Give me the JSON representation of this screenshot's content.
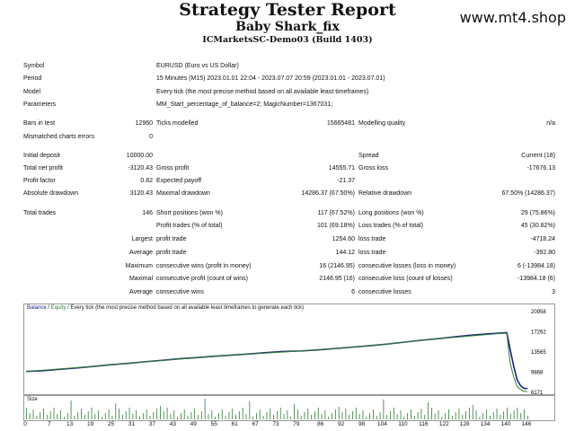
{
  "report": {
    "title": "Strategy Tester Report",
    "ea_name": "Baby Shark_fix",
    "server": "ICMarketsSC-Demo03 (Build 1403)",
    "brand": "www.mt4.shop"
  },
  "header_rows": [
    {
      "label": "Symbol",
      "value": "EURUSD (Euro vs US Dollar)"
    },
    {
      "label": "Period",
      "value": "15 Minutes (M15) 2023.01.01 22:04 - 2023.07.07 20:59 (2023.01.01 - 2023.07.01)"
    },
    {
      "label": "Model",
      "value": "Every tick (the most precise method based on all available least timeframes)"
    },
    {
      "label": "Parameters",
      "value": "MM_Start_percentage_of_balance=2; MagicNumber=1367031;"
    }
  ],
  "stats": {
    "bars_label": "Bars in test",
    "bars_value": "12960",
    "ticks_label": "Ticks modelled",
    "ticks_value": "15665481",
    "quality_label": "Modelling quality",
    "quality_value": "n/a",
    "mismatch_label": "Mismatched charts errors",
    "mismatch_value": "0",
    "deposit_label": "Initial deposit",
    "deposit_value": "10000.00",
    "spread_label": "Spread",
    "spread_value": "Current (18)",
    "netprofit_label": "Total net profit",
    "netprofit_value": "-3120.43",
    "grossprofit_label": "Gross profit",
    "grossprofit_value": "14555.71",
    "grossloss_label": "Gross loss",
    "grossloss_value": "-17676.13",
    "pf_label": "Profit factor",
    "pf_value": "0.82",
    "payoff_label": "Expected payoff",
    "payoff_value": "-21.37",
    "absdd_label": "Absolute drawdown",
    "absdd_value": "3120.43",
    "maxdd_label": "Maximal drawdown",
    "maxdd_value": "14286.37 (67.50%)",
    "reldd_label": "Relative drawdown",
    "reldd_value": "67.50% (14286.37)",
    "trades_label": "Total trades",
    "trades_value": "146",
    "short_label": "Short positions (won %)",
    "short_value": "117 (67.52%)",
    "long_label": "Long positions (won %)",
    "long_value": "29 (75.86%)",
    "ptrades_label": "Profit trades (% of total)",
    "ptrades_value": "101 (69.18%)",
    "ltrades_label": "Loss trades (% of total)",
    "ltrades_value": "45 (30.82%)",
    "largest_label": "Largest",
    "largest_pt_label": "profit trade",
    "largest_pt_value": "1254.60",
    "largest_lt_label": "loss trade",
    "largest_lt_value": "-4718.24",
    "average_label": "Average",
    "avg_pt_label": "profit trade",
    "avg_pt_value": "144.12",
    "avg_lt_label": "loss trade",
    "avg_lt_value": "-392.80",
    "maximum_label": "Maximum",
    "max_cw_label": "consecutive wins (profit in money)",
    "max_cw_value": "16 (2146.95)",
    "max_cl_label": "consecutive losses (loss in money)",
    "max_cl_value": "6 (-13984.18)",
    "maximal_label": "Maximal",
    "mxl_cp_label": "consecutive profit (count of wins)",
    "mxl_cp_value": "2146.95 (16)",
    "mxl_cl_label": "consecutive loss (count of losses)",
    "mxl_cl_value": "-13984.18 (6)",
    "average2_label": "Average",
    "avg_cw_label": "consecutive wins",
    "avg_cw_value": "6",
    "avg_cl_label": "consecutive losses",
    "avg_cl_value": "3"
  },
  "chart": {
    "legend_balance": "Balance",
    "legend_sep": " / ",
    "legend_equity": "Equity",
    "legend_rest": " / Every tick (the most precise method based on all available least timeframes to generate each tick)",
    "size_label": "Size",
    "colors": {
      "balance": "#1a237e",
      "equity": "#2e7d32"
    }
  },
  "chart_data": {
    "type": "line",
    "title": "",
    "xlabel": "",
    "ylabel": "",
    "x_ticks": [
      0,
      4,
      7,
      11,
      14,
      18,
      21,
      25,
      28,
      31,
      35,
      38,
      41,
      45,
      48,
      51,
      55,
      58,
      61,
      64,
      68,
      71,
      74,
      78,
      81,
      84,
      88,
      91,
      94,
      98,
      101,
      104,
      108,
      111,
      114,
      118,
      121,
      124,
      128,
      131,
      134,
      138,
      141,
      144
    ],
    "x_tick_labels": [
      "0",
      "7",
      "13",
      "19",
      "25",
      "31",
      "37",
      "43",
      "49",
      "55",
      "61",
      "67",
      "73",
      "79",
      "86",
      "92",
      "98",
      "104",
      "110",
      "116",
      "122",
      "128",
      "134",
      "140",
      "146"
    ],
    "y_ticks": [
      "20958",
      "17262",
      "13565",
      "9868",
      "6171"
    ],
    "ylim": [
      6171,
      20958
    ],
    "xlim": [
      0,
      146
    ],
    "series": [
      {
        "name": "Balance",
        "x": [
          0,
          5,
          10,
          15,
          20,
          25,
          30,
          35,
          40,
          45,
          50,
          55,
          60,
          65,
          70,
          75,
          80,
          85,
          90,
          95,
          100,
          105,
          110,
          115,
          120,
          125,
          130,
          135,
          140,
          141,
          142,
          143,
          144,
          145,
          146
        ],
        "values": [
          10000,
          10150,
          10400,
          10650,
          10950,
          11250,
          11500,
          11800,
          12050,
          12350,
          12550,
          12800,
          13000,
          13200,
          13450,
          13650,
          13750,
          13950,
          14200,
          14450,
          14700,
          15000,
          15350,
          15700,
          16000,
          16350,
          16650,
          16900,
          17100,
          14000,
          11000,
          8500,
          7400,
          6900,
          6880
        ]
      },
      {
        "name": "Equity",
        "x": [
          0,
          20,
          40,
          60,
          80,
          100,
          120,
          138,
          140,
          141,
          142,
          143,
          144,
          145,
          146
        ],
        "values": [
          10000,
          10950,
          12050,
          13000,
          13750,
          14700,
          16000,
          16950,
          17000,
          11500,
          9000,
          7300,
          6700,
          6400,
          6300
        ]
      }
    ]
  }
}
